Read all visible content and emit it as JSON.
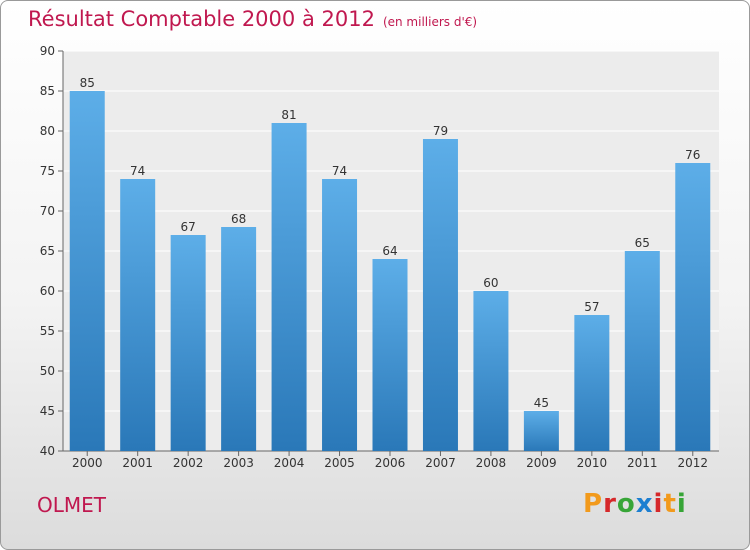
{
  "header": {
    "title": "Résultat Comptable 2000 à 2012",
    "unit": "(en milliers d'€)"
  },
  "footer": {
    "commune": "OLMET",
    "brand": "Proxiti",
    "brand_colors": [
      "#f29a1c",
      "#d6282a",
      "#37a537",
      "#1c7fd1",
      "#d6282a",
      "#f29a1c",
      "#37a537"
    ]
  },
  "colors": {
    "accent": "#c0184f",
    "bar_top": "#5daee8",
    "bar_bottom": "#2a78b8"
  },
  "chart_data": {
    "type": "bar",
    "categories": [
      "2000",
      "2001",
      "2002",
      "2003",
      "2004",
      "2005",
      "2006",
      "2007",
      "2008",
      "2009",
      "2010",
      "2011",
      "2012"
    ],
    "values": [
      85,
      74,
      67,
      68,
      81,
      74,
      64,
      79,
      60,
      45,
      57,
      65,
      76
    ],
    "title": "Résultat Comptable 2000 à 2012",
    "xlabel": "",
    "ylabel": "",
    "ylim": [
      40,
      90
    ],
    "yticks": [
      40,
      45,
      50,
      55,
      60,
      65,
      70,
      75,
      80,
      85,
      90
    ],
    "grid": true,
    "legend": "none"
  }
}
